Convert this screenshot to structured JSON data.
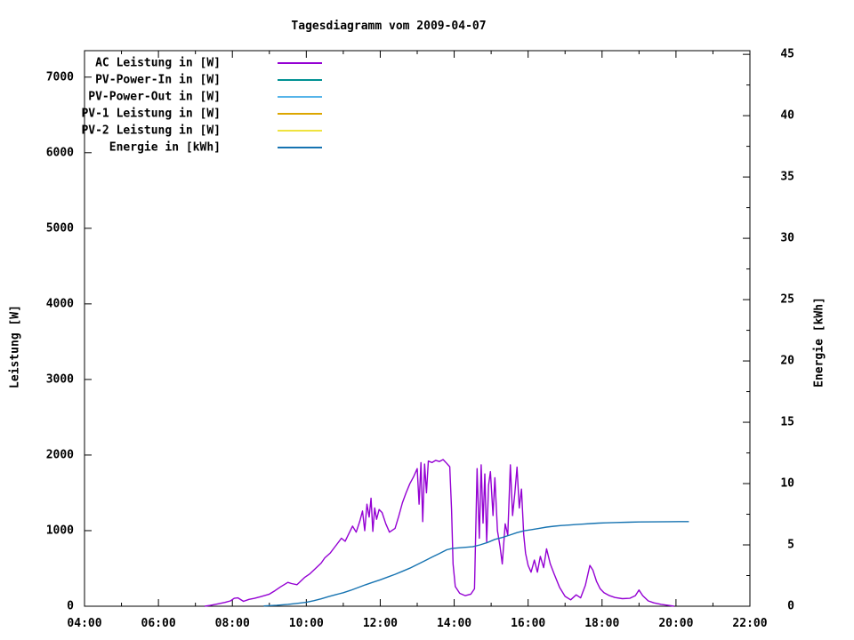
{
  "title": "Tagesdiagramm vom 2009-04-07",
  "axes": {
    "left_label": "Leistung [W]",
    "right_label": "Energie [kWh]"
  },
  "chart_data": {
    "type": "line",
    "title": "Tagesdiagramm vom 2009-04-07",
    "y_left_label": "Leistung [W]",
    "y_right_label": "Energie [kWh]",
    "x_range_hours": [
      4,
      22
    ],
    "x_major_tick_hours": 2,
    "x_minor_tick_hours": 1,
    "x_tick_labels": [
      "04:00",
      "06:00",
      "08:00",
      "10:00",
      "12:00",
      "14:00",
      "16:00",
      "18:00",
      "20:00",
      "22:00"
    ],
    "y_left_range": [
      0,
      7350
    ],
    "y_left_ticks": [
      0,
      1000,
      2000,
      3000,
      4000,
      5000,
      6000,
      7000
    ],
    "y_right_range": [
      0,
      45.3
    ],
    "y_right_ticks": [
      0,
      5,
      10,
      15,
      20,
      25,
      30,
      35,
      40,
      45
    ],
    "y_right_minor_step": 2.5,
    "grid": false,
    "legend_position": "top-left-inside",
    "series": [
      {
        "name": "AC Leistung in [W]",
        "color": "#9400d3",
        "axis": "left",
        "visible": true,
        "points": [
          [
            7.25,
            0
          ],
          [
            7.4,
            10
          ],
          [
            7.6,
            30
          ],
          [
            7.8,
            50
          ],
          [
            7.95,
            70
          ],
          [
            8.05,
            105
          ],
          [
            8.15,
            110
          ],
          [
            8.3,
            65
          ],
          [
            8.45,
            90
          ],
          [
            8.6,
            105
          ],
          [
            8.75,
            125
          ],
          [
            9.0,
            160
          ],
          [
            9.15,
            205
          ],
          [
            9.3,
            255
          ],
          [
            9.5,
            315
          ],
          [
            9.6,
            300
          ],
          [
            9.75,
            285
          ],
          [
            9.95,
            380
          ],
          [
            10.1,
            430
          ],
          [
            10.25,
            500
          ],
          [
            10.4,
            570
          ],
          [
            10.5,
            640
          ],
          [
            10.65,
            705
          ],
          [
            10.75,
            770
          ],
          [
            10.85,
            835
          ],
          [
            10.95,
            900
          ],
          [
            11.05,
            860
          ],
          [
            11.15,
            960
          ],
          [
            11.25,
            1060
          ],
          [
            11.35,
            980
          ],
          [
            11.45,
            1130
          ],
          [
            11.52,
            1260
          ],
          [
            11.58,
            1000
          ],
          [
            11.64,
            1350
          ],
          [
            11.7,
            1180
          ],
          [
            11.75,
            1430
          ],
          [
            11.8,
            990
          ],
          [
            11.85,
            1300
          ],
          [
            11.9,
            1150
          ],
          [
            11.97,
            1280
          ],
          [
            12.05,
            1240
          ],
          [
            12.15,
            1090
          ],
          [
            12.25,
            980
          ],
          [
            12.4,
            1030
          ],
          [
            12.5,
            1190
          ],
          [
            12.6,
            1370
          ],
          [
            12.7,
            1500
          ],
          [
            12.8,
            1620
          ],
          [
            12.9,
            1710
          ],
          [
            13.0,
            1820
          ],
          [
            13.05,
            1350
          ],
          [
            13.1,
            1900
          ],
          [
            13.15,
            1120
          ],
          [
            13.2,
            1880
          ],
          [
            13.25,
            1500
          ],
          [
            13.3,
            1920
          ],
          [
            13.4,
            1900
          ],
          [
            13.5,
            1930
          ],
          [
            13.6,
            1915
          ],
          [
            13.7,
            1940
          ],
          [
            13.8,
            1890
          ],
          [
            13.88,
            1845
          ],
          [
            13.93,
            1280
          ],
          [
            13.97,
            560
          ],
          [
            14.03,
            260
          ],
          [
            14.15,
            170
          ],
          [
            14.3,
            140
          ],
          [
            14.45,
            160
          ],
          [
            14.55,
            230
          ],
          [
            14.62,
            1820
          ],
          [
            14.68,
            900
          ],
          [
            14.73,
            1870
          ],
          [
            14.78,
            1100
          ],
          [
            14.83,
            1750
          ],
          [
            14.88,
            850
          ],
          [
            14.93,
            1600
          ],
          [
            14.98,
            1780
          ],
          [
            15.05,
            1200
          ],
          [
            15.1,
            1700
          ],
          [
            15.17,
            1000
          ],
          [
            15.24,
            790
          ],
          [
            15.3,
            560
          ],
          [
            15.38,
            1090
          ],
          [
            15.45,
            940
          ],
          [
            15.52,
            1870
          ],
          [
            15.58,
            1200
          ],
          [
            15.64,
            1490
          ],
          [
            15.7,
            1840
          ],
          [
            15.76,
            1300
          ],
          [
            15.82,
            1550
          ],
          [
            15.88,
            950
          ],
          [
            15.93,
            700
          ],
          [
            16.0,
            540
          ],
          [
            16.08,
            450
          ],
          [
            16.17,
            610
          ],
          [
            16.25,
            450
          ],
          [
            16.33,
            660
          ],
          [
            16.42,
            510
          ],
          [
            16.5,
            760
          ],
          [
            16.6,
            560
          ],
          [
            16.7,
            430
          ],
          [
            16.85,
            250
          ],
          [
            17.0,
            130
          ],
          [
            17.15,
            85
          ],
          [
            17.3,
            150
          ],
          [
            17.42,
            110
          ],
          [
            17.55,
            280
          ],
          [
            17.67,
            540
          ],
          [
            17.75,
            480
          ],
          [
            17.85,
            330
          ],
          [
            17.95,
            230
          ],
          [
            18.05,
            180
          ],
          [
            18.2,
            140
          ],
          [
            18.35,
            115
          ],
          [
            18.55,
            100
          ],
          [
            18.75,
            105
          ],
          [
            18.9,
            140
          ],
          [
            19.0,
            215
          ],
          [
            19.1,
            140
          ],
          [
            19.25,
            70
          ],
          [
            19.4,
            45
          ],
          [
            19.6,
            25
          ],
          [
            19.8,
            10
          ],
          [
            19.95,
            0
          ]
        ]
      },
      {
        "name": "PV-Power-In in [W]",
        "color": "#009193",
        "axis": "left",
        "visible": false,
        "points": []
      },
      {
        "name": "PV-Power-Out in [W]",
        "color": "#56b4e9",
        "axis": "left",
        "visible": false,
        "points": []
      },
      {
        "name": "PV-1 Leistung in [W]",
        "color": "#dca600",
        "axis": "left",
        "visible": false,
        "points": []
      },
      {
        "name": "PV-2 Leistung in [W]",
        "color": "#efe33f",
        "axis": "left",
        "visible": false,
        "points": []
      },
      {
        "name": "Energie in [kWh]",
        "color": "#1673b1",
        "axis": "right",
        "visible": true,
        "points": [
          [
            8.85,
            0.02
          ],
          [
            9.2,
            0.08
          ],
          [
            9.5,
            0.15
          ],
          [
            9.8,
            0.25
          ],
          [
            10.0,
            0.32
          ],
          [
            10.2,
            0.45
          ],
          [
            10.4,
            0.6
          ],
          [
            10.6,
            0.78
          ],
          [
            10.8,
            0.95
          ],
          [
            11.0,
            1.1
          ],
          [
            11.2,
            1.3
          ],
          [
            11.4,
            1.52
          ],
          [
            11.6,
            1.75
          ],
          [
            11.8,
            1.95
          ],
          [
            12.0,
            2.15
          ],
          [
            12.2,
            2.38
          ],
          [
            12.4,
            2.6
          ],
          [
            12.6,
            2.85
          ],
          [
            12.8,
            3.1
          ],
          [
            13.0,
            3.4
          ],
          [
            13.2,
            3.7
          ],
          [
            13.4,
            4.0
          ],
          [
            13.6,
            4.3
          ],
          [
            13.8,
            4.6
          ],
          [
            13.95,
            4.72
          ],
          [
            14.2,
            4.78
          ],
          [
            14.5,
            4.85
          ],
          [
            14.7,
            5.0
          ],
          [
            14.9,
            5.2
          ],
          [
            15.1,
            5.45
          ],
          [
            15.3,
            5.6
          ],
          [
            15.5,
            5.8
          ],
          [
            15.7,
            6.0
          ],
          [
            15.9,
            6.15
          ],
          [
            16.1,
            6.25
          ],
          [
            16.3,
            6.35
          ],
          [
            16.5,
            6.45
          ],
          [
            16.7,
            6.52
          ],
          [
            16.9,
            6.58
          ],
          [
            17.1,
            6.62
          ],
          [
            17.3,
            6.66
          ],
          [
            17.5,
            6.7
          ],
          [
            17.7,
            6.74
          ],
          [
            17.9,
            6.78
          ],
          [
            18.1,
            6.8
          ],
          [
            18.4,
            6.83
          ],
          [
            18.7,
            6.85
          ],
          [
            19.0,
            6.87
          ],
          [
            19.4,
            6.88
          ],
          [
            19.8,
            6.89
          ],
          [
            20.35,
            6.9
          ]
        ]
      }
    ]
  }
}
